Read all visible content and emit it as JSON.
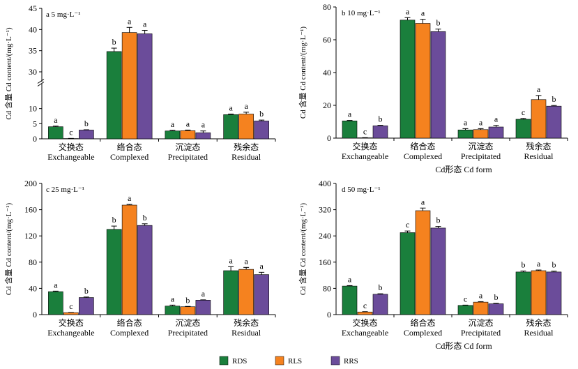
{
  "colors": {
    "RDS": "#1a7f3c",
    "RLS": "#f5821f",
    "RRS": "#6b4c9a"
  },
  "legend": [
    "RDS",
    "RLS",
    "RRS"
  ],
  "chart_data": [
    {
      "type": "bar",
      "panel_label": "a  5 mg·L⁻¹",
      "ylabel": "Cd 含量 Cd content/(mg·L⁻¹)",
      "broken_axis": {
        "lower": [
          0,
          15
        ],
        "upper": [
          30,
          45
        ]
      },
      "yticks": [
        0,
        5,
        10,
        30,
        35,
        40,
        45
      ],
      "categories": [
        "交换态",
        "络合态",
        "沉淀态",
        "残余态"
      ],
      "categories_en": [
        "Exchangeable",
        "Complexed",
        "Precipitated",
        "Residual"
      ],
      "series": [
        {
          "name": "RDS",
          "values": [
            4.0,
            34.8,
            2.6,
            8.0
          ],
          "errors": [
            0.2,
            0.8,
            0.2,
            0.2
          ],
          "letters": [
            "a",
            "b",
            "a",
            "a"
          ]
        },
        {
          "name": "RLS",
          "values": [
            0.1,
            39.3,
            2.7,
            8.2
          ],
          "errors": [
            0.05,
            1.2,
            0.2,
            0.6
          ],
          "letters": [
            "c",
            "a",
            "a",
            "a"
          ]
        },
        {
          "name": "RRS",
          "values": [
            2.9,
            39.0,
            2.0,
            5.9
          ],
          "errors": [
            0.1,
            0.8,
            0.6,
            0.3
          ],
          "letters": [
            "b",
            "a",
            "a",
            "b"
          ]
        }
      ]
    },
    {
      "type": "bar",
      "panel_label": "b  10 mg·L⁻¹",
      "ylabel": "Cd 含量 Cd content/(mg·L⁻¹)",
      "ylim": [
        0,
        80
      ],
      "yticks": [
        0,
        20,
        40,
        60,
        80
      ],
      "categories": [
        "交换态",
        "络合态",
        "沉淀态",
        "残余态"
      ],
      "categories_en": [
        "Exchangeable",
        "Complexed",
        "Precipitated",
        "Residual"
      ],
      "xlabel": "Cd形态  Cd form",
      "series": [
        {
          "name": "RDS",
          "values": [
            10.5,
            72.0,
            5.0,
            11.5
          ],
          "errors": [
            0.3,
            1.5,
            0.8,
            0.5
          ],
          "letters": [
            "a",
            "a",
            "a",
            "c"
          ]
        },
        {
          "name": "RLS",
          "values": [
            0.2,
            70.0,
            5.2,
            23.5
          ],
          "errors": [
            0.1,
            2.5,
            0.6,
            2.5
          ],
          "letters": [
            "c",
            "a",
            "a",
            "a"
          ]
        },
        {
          "name": "RRS",
          "values": [
            7.5,
            65.0,
            6.8,
            19.5
          ],
          "errors": [
            0.3,
            1.5,
            1.0,
            0.4
          ],
          "letters": [
            "b",
            "b",
            "a",
            "b"
          ]
        }
      ]
    },
    {
      "type": "bar",
      "panel_label": "c  25 mg·L⁻¹",
      "ylabel": "Cd 含量 Cd content/(mg·L⁻¹)",
      "ylim": [
        0,
        200
      ],
      "yticks": [
        0,
        40,
        80,
        120,
        160,
        200
      ],
      "categories": [
        "交换态",
        "络合态",
        "沉淀态",
        "残余态"
      ],
      "categories_en": [
        "Exchangeable",
        "Complexed",
        "Precipitated",
        "Residual"
      ],
      "series": [
        {
          "name": "RDS",
          "values": [
            35.0,
            130.0,
            13.0,
            67.0
          ],
          "errors": [
            0.8,
            5.0,
            1.5,
            6.0
          ],
          "letters": [
            "a",
            "b",
            "a",
            "a"
          ]
        },
        {
          "name": "RLS",
          "values": [
            3.0,
            167.0,
            12.0,
            69.0
          ],
          "errors": [
            0.3,
            1.0,
            0.5,
            3.0
          ],
          "letters": [
            "c",
            "a",
            "b",
            "a"
          ]
        },
        {
          "name": "RRS",
          "values": [
            26.0,
            136.0,
            22.0,
            61.0
          ],
          "errors": [
            0.8,
            2.5,
            0.5,
            3.5
          ],
          "letters": [
            "b",
            "b",
            "a",
            "a"
          ]
        }
      ]
    },
    {
      "type": "bar",
      "panel_label": "d  50 mg·L⁻¹",
      "ylabel": "Cd 含量 Cd content/(mg·L⁻¹)",
      "ylim": [
        0,
        400
      ],
      "yticks": [
        0,
        80,
        160,
        240,
        320,
        400
      ],
      "categories": [
        "交换态",
        "络合态",
        "沉淀态",
        "残余态"
      ],
      "categories_en": [
        "Exchangeable",
        "Complexed",
        "Precipitated",
        "Residual"
      ],
      "xlabel": "Cd形态  Cd form",
      "series": [
        {
          "name": "RDS",
          "values": [
            87.0,
            250.0,
            28.0,
            130.0
          ],
          "errors": [
            1.5,
            5.0,
            1.0,
            3.0
          ],
          "letters": [
            "a",
            "c",
            "c",
            "b"
          ]
        },
        {
          "name": "RLS",
          "values": [
            8.0,
            317.0,
            38.0,
            134.0
          ],
          "errors": [
            1.0,
            8.0,
            1.5,
            2.0
          ],
          "letters": [
            "c",
            "a",
            "a",
            "a"
          ]
        },
        {
          "name": "RRS",
          "values": [
            62.0,
            264.0,
            33.0,
            130.0
          ],
          "errors": [
            1.5,
            5.0,
            1.5,
            2.5
          ],
          "letters": [
            "b",
            "b",
            "b",
            "b"
          ]
        }
      ]
    }
  ]
}
